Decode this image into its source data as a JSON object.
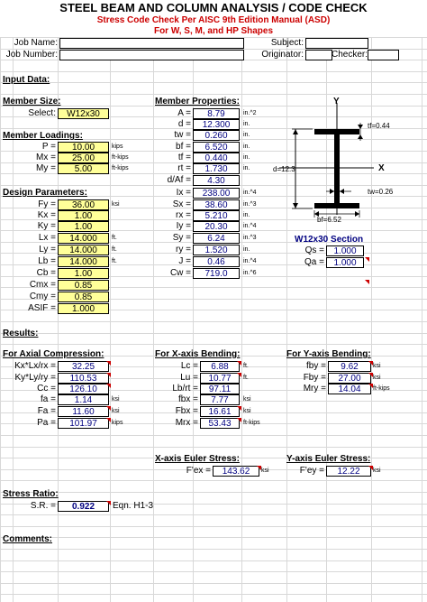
{
  "title": "STEEL BEAM AND COLUMN ANALYSIS / CODE CHECK",
  "subtitle1": "Stress Code Check Per AISC 9th Edition Manual (ASD)",
  "subtitle2": "For W, S, M, and HP Shapes",
  "header": {
    "job_name": "Job Name:",
    "subject": "Subject:",
    "job_number": "Job Number:",
    "originator": "Originator:",
    "checker": "Checker:"
  },
  "input_data": "Input Data:",
  "member_size": {
    "heading": "Member Size:",
    "select_label": "Select:",
    "select_value": "W12x30"
  },
  "member_loadings": {
    "heading": "Member Loadings:",
    "rows": [
      {
        "label": "P =",
        "value": "10.00",
        "unit": "kips"
      },
      {
        "label": "Mx =",
        "value": "25.00",
        "unit": "ft-kips"
      },
      {
        "label": "My =",
        "value": "5.00",
        "unit": "ft-kips"
      }
    ]
  },
  "design_parameters": {
    "heading": "Design Parameters:",
    "rows": [
      {
        "label": "Fy =",
        "value": "36.00",
        "unit": "ksi"
      },
      {
        "label": "Kx =",
        "value": "1.00",
        "unit": ""
      },
      {
        "label": "Ky =",
        "value": "1.00",
        "unit": ""
      },
      {
        "label": "Lx =",
        "value": "14.000",
        "unit": "ft."
      },
      {
        "label": "Ly =",
        "value": "14.000",
        "unit": "ft."
      },
      {
        "label": "Lb =",
        "value": "14.000",
        "unit": "ft."
      },
      {
        "label": "Cb =",
        "value": "1.00",
        "unit": ""
      },
      {
        "label": "Cmx =",
        "value": "0.85",
        "unit": ""
      },
      {
        "label": "Cmy =",
        "value": "0.85",
        "unit": ""
      },
      {
        "label": "ASIF =",
        "value": "1.000",
        "unit": ""
      }
    ]
  },
  "member_properties": {
    "heading": "Member Properties:",
    "rows": [
      {
        "label": "A =",
        "value": "8.79",
        "unit": "in.^2"
      },
      {
        "label": "d =",
        "value": "12.300",
        "unit": "in."
      },
      {
        "label": "tw =",
        "value": "0.260",
        "unit": "in."
      },
      {
        "label": "bf =",
        "value": "6.520",
        "unit": "in."
      },
      {
        "label": "tf =",
        "value": "0.440",
        "unit": "in."
      },
      {
        "label": "rt =",
        "value": "1.730",
        "unit": "in."
      },
      {
        "label": "d/Af =",
        "value": "4.30",
        "unit": ""
      },
      {
        "label": "Ix =",
        "value": "238.00",
        "unit": "in.^4"
      },
      {
        "label": "Sx =",
        "value": "38.60",
        "unit": "in.^3"
      },
      {
        "label": "rx =",
        "value": "5.210",
        "unit": "in."
      },
      {
        "label": "Iy =",
        "value": "20.30",
        "unit": "in.^4"
      },
      {
        "label": "Sy =",
        "value": "6.24",
        "unit": "in.^3"
      },
      {
        "label": "ry =",
        "value": "1.520",
        "unit": "in."
      },
      {
        "label": "J =",
        "value": "0.46",
        "unit": "in.^4"
      },
      {
        "label": "Cw =",
        "value": "719.0",
        "unit": "in.^6"
      }
    ]
  },
  "diagram": {
    "y_label": "Y",
    "x_label": "X",
    "tf_label": "tf=0.44",
    "d_label": "d=12.3",
    "tw_label": "tw=0.26",
    "bf_label": "bf=6.52",
    "section_title": "W12x30 Section",
    "qs_label": "Qs =",
    "qs_value": "1.000",
    "qa_label": "Qa =",
    "qa_value": "1.000"
  },
  "results": "Results:",
  "axial": {
    "heading": "For Axial Compression:",
    "rows": [
      {
        "label": "Kx*Lx/rx =",
        "value": "32.25",
        "unit": ""
      },
      {
        "label": "Ky*Ly/ry =",
        "value": "110.53",
        "unit": ""
      },
      {
        "label": "Cc =",
        "value": "126.10",
        "unit": ""
      },
      {
        "label": "fa =",
        "value": "1.14",
        "unit": "ksi"
      },
      {
        "label": "Fa =",
        "value": "11.60",
        "unit": "ksi"
      },
      {
        "label": "Pa =",
        "value": "101.97",
        "unit": "kips"
      }
    ]
  },
  "xbending": {
    "heading": "For X-axis Bending:",
    "rows": [
      {
        "label": "Lc =",
        "value": "6.88",
        "unit": "ft."
      },
      {
        "label": "Lu =",
        "value": "10.77",
        "unit": "ft."
      },
      {
        "label": "Lb/rt =",
        "value": "97.11",
        "unit": ""
      },
      {
        "label": "fbx =",
        "value": "7.77",
        "unit": "ksi"
      },
      {
        "label": "Fbx =",
        "value": "16.61",
        "unit": "ksi"
      },
      {
        "label": "Mrx =",
        "value": "53.43",
        "unit": "ft-kips"
      }
    ]
  },
  "ybending": {
    "heading": "For Y-axis Bending:",
    "rows": [
      {
        "label": "fby =",
        "value": "9.62",
        "unit": "ksi"
      },
      {
        "label": "Fby =",
        "value": "27.00",
        "unit": "ksi"
      },
      {
        "label": "Mry =",
        "value": "14.04",
        "unit": "ft-kips"
      }
    ]
  },
  "euler_x": {
    "heading": "X-axis Euler Stress:",
    "label": "F'ex =",
    "value": "143.62",
    "unit": "ksi"
  },
  "euler_y": {
    "heading": "Y-axis Euler Stress:",
    "label": "F'ey =",
    "value": "12.22",
    "unit": "ksi"
  },
  "stress_ratio": {
    "heading": "Stress Ratio:",
    "label": "S.R. =",
    "value": "0.922",
    "eqn": "Eqn. H1-3"
  },
  "comments": "Comments:",
  "colors": {
    "input_fill": "#ffff99",
    "title_red": "#cc0000",
    "value_blue": "#000080"
  }
}
